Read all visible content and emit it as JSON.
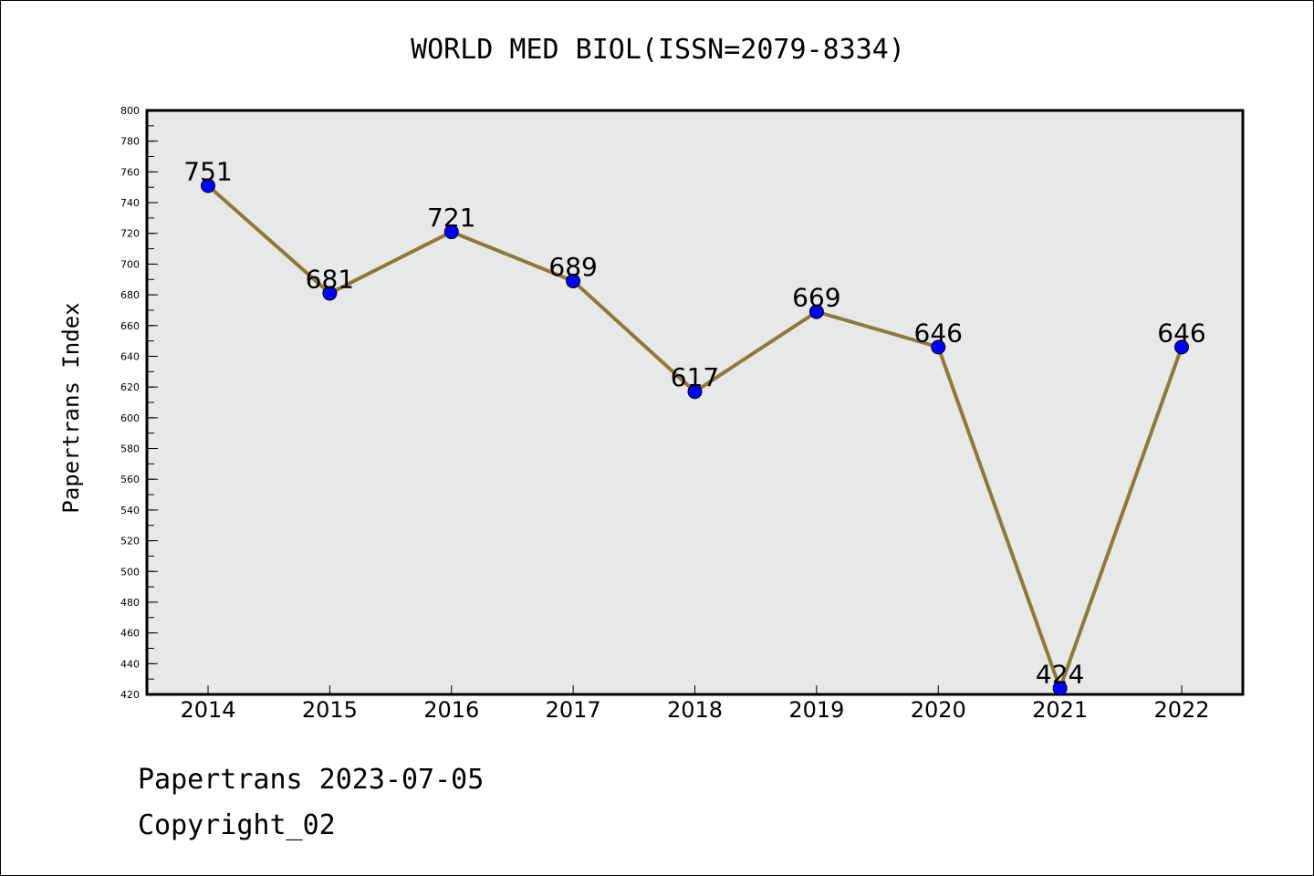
{
  "chart_data": {
    "type": "line",
    "title": "WORLD MED BIOL(ISSN=2079-8334)",
    "xlabel": "",
    "ylabel": "Papertrans Index",
    "categories": [
      "2014",
      "2015",
      "2016",
      "2017",
      "2018",
      "2019",
      "2020",
      "2021",
      "2022"
    ],
    "series": [
      {
        "values": [
          751,
          681,
          721,
          689,
          617,
          669,
          646,
          424,
          646
        ]
      }
    ],
    "ylim": [
      420,
      800
    ],
    "yticks": [
      420,
      440,
      460,
      480,
      500,
      520,
      540,
      560,
      580,
      600,
      620,
      640,
      660,
      680,
      700,
      720,
      740,
      760,
      780,
      800
    ],
    "grid": false,
    "line_color": "#8c7a3a",
    "marker_color": "#0000ff",
    "plot_background": "#e8e8e8"
  },
  "footer": {
    "line1": "Papertrans 2023-07-05",
    "line2": "Copyright_02"
  }
}
